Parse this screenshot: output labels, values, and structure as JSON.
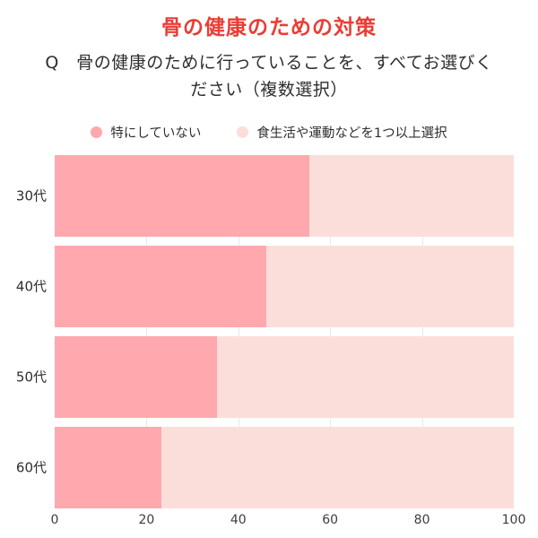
{
  "title": {
    "text": "骨の健康のための対策",
    "color": "#e93d35"
  },
  "question": {
    "lines": [
      "Q　骨の健康のために行っていることを、すべてお選びく",
      "ださい（複数選択）"
    ]
  },
  "legend": {
    "items": [
      {
        "label": "特にしていない",
        "color": "#ffa8ad"
      },
      {
        "label": "食生活や運動などを1つ以上選択",
        "color": "#fbdeda"
      }
    ]
  },
  "chart_data": {
    "type": "bar",
    "orientation": "horizontal",
    "stacked": true,
    "title": "骨の健康のための対策",
    "categories": [
      "30代",
      "40代",
      "50代",
      "60代"
    ],
    "series": [
      {
        "name": "特にしていない",
        "color": "#ffa8ad",
        "values": [
          55.5,
          46.1,
          35.4,
          23.3
        ]
      },
      {
        "name": "食生活や運動などを1つ以上選択",
        "color": "#fbdeda",
        "values": [
          44.5,
          53.9,
          64.6,
          76.7
        ]
      }
    ],
    "xlim": [
      0,
      100
    ],
    "x_ticks": [
      0,
      20,
      40,
      60,
      80,
      100
    ],
    "gridline_color": "#e8e8e8",
    "legend_position": "top",
    "grid": "vertical-only"
  }
}
